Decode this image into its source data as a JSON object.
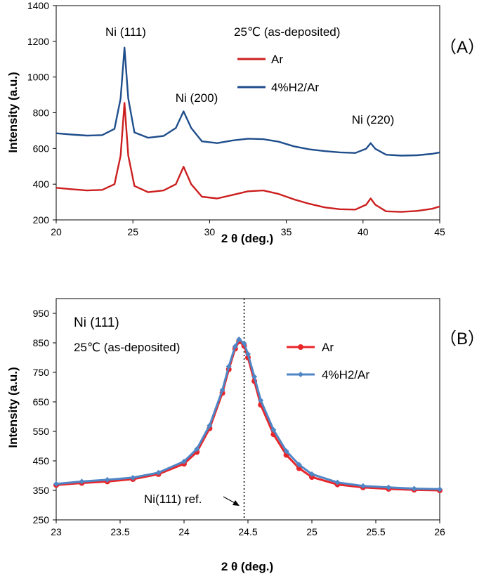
{
  "chart_data": [
    {
      "type": "line",
      "panel_label": "（A）",
      "title": "25℃ (as-deposited)",
      "xlabel": "2 θ  (deg.)",
      "ylabel": "Intensity  (a.u.)",
      "xlim": [
        20,
        45
      ],
      "ylim": [
        200,
        1400
      ],
      "xticks": [
        "20",
        "25",
        "30",
        "35",
        "40",
        "45"
      ],
      "yticks": [
        "200",
        "400",
        "600",
        "800",
        "1000",
        "1200",
        "1400"
      ],
      "peak_labels": [
        "Ni (111)",
        "Ni (200)",
        "Ni (220)"
      ],
      "colors": {
        "Ar": "#cc1f1f",
        "4%H2/Ar": "#1f4e8c"
      },
      "series": [
        {
          "name": "Ar",
          "x": [
            20,
            21,
            22,
            23,
            23.8,
            24.2,
            24.45,
            24.7,
            25.1,
            26,
            27,
            27.8,
            28.3,
            28.8,
            29.5,
            30.5,
            31.5,
            32.5,
            33.5,
            34.5,
            35.5,
            36.5,
            37.5,
            38.5,
            39.5,
            40.2,
            40.5,
            40.8,
            41.5,
            42.5,
            43.5,
            44.5,
            45
          ],
          "y": [
            380,
            372,
            365,
            368,
            400,
            560,
            855,
            560,
            390,
            355,
            365,
            400,
            498,
            400,
            330,
            320,
            340,
            360,
            365,
            345,
            315,
            290,
            270,
            260,
            258,
            285,
            320,
            285,
            248,
            245,
            250,
            262,
            275
          ]
        },
        {
          "name": "4%H2/Ar",
          "x": [
            20,
            21,
            22,
            23,
            23.8,
            24.2,
            24.45,
            24.7,
            25.1,
            26,
            27,
            27.8,
            28.3,
            28.8,
            29.5,
            30.5,
            31.5,
            32.5,
            33.5,
            34.5,
            35.5,
            36.5,
            37.5,
            38.5,
            39.5,
            40.2,
            40.5,
            40.8,
            41.5,
            42.5,
            43.5,
            44.5,
            45
          ],
          "y": [
            685,
            678,
            672,
            675,
            710,
            880,
            1165,
            880,
            690,
            660,
            670,
            715,
            808,
            715,
            640,
            630,
            645,
            655,
            652,
            638,
            612,
            595,
            585,
            578,
            575,
            598,
            630,
            598,
            565,
            560,
            562,
            570,
            578
          ]
        }
      ]
    },
    {
      "type": "scatter",
      "panel_label": "（B）",
      "title": "Ni (111)",
      "subtitle": "25℃ (as-deposited)",
      "xlabel": "2 θ  (deg.)",
      "ylabel": "Intensity  (a.u.)",
      "xlim": [
        23,
        26
      ],
      "ylim": [
        250,
        1000
      ],
      "xticks": [
        "23",
        "23.5",
        "24",
        "24.5",
        "25",
        "25.5",
        "26"
      ],
      "yticks": [
        "250",
        "350",
        "450",
        "550",
        "650",
        "750",
        "850",
        "950"
      ],
      "reference_line": {
        "label": "Ni(111) ref.",
        "x": 24.47
      },
      "colors": {
        "Ar": "#e8262a",
        "4%H2/Ar": "#4f86c6"
      },
      "series": [
        {
          "name": "Ar",
          "x": [
            23.0,
            23.2,
            23.4,
            23.6,
            23.8,
            24.0,
            24.1,
            24.2,
            24.3,
            24.35,
            24.4,
            24.43,
            24.47,
            24.5,
            24.55,
            24.6,
            24.7,
            24.8,
            24.9,
            25.0,
            25.2,
            25.4,
            25.6,
            25.8,
            26.0
          ],
          "y": [
            368,
            375,
            380,
            388,
            405,
            440,
            480,
            560,
            680,
            760,
            830,
            855,
            840,
            800,
            720,
            640,
            540,
            470,
            425,
            395,
            370,
            360,
            355,
            352,
            350
          ]
        },
        {
          "name": "4%H2/Ar",
          "x": [
            23.0,
            23.2,
            23.4,
            23.6,
            23.8,
            24.0,
            24.1,
            24.2,
            24.3,
            24.35,
            24.4,
            24.43,
            24.47,
            24.5,
            24.55,
            24.6,
            24.7,
            24.8,
            24.9,
            25.0,
            25.2,
            25.4,
            25.6,
            25.8,
            26.0
          ],
          "y": [
            372,
            380,
            386,
            393,
            410,
            448,
            490,
            570,
            690,
            770,
            838,
            862,
            848,
            812,
            735,
            655,
            555,
            483,
            437,
            405,
            377,
            365,
            360,
            356,
            354
          ]
        }
      ]
    }
  ]
}
